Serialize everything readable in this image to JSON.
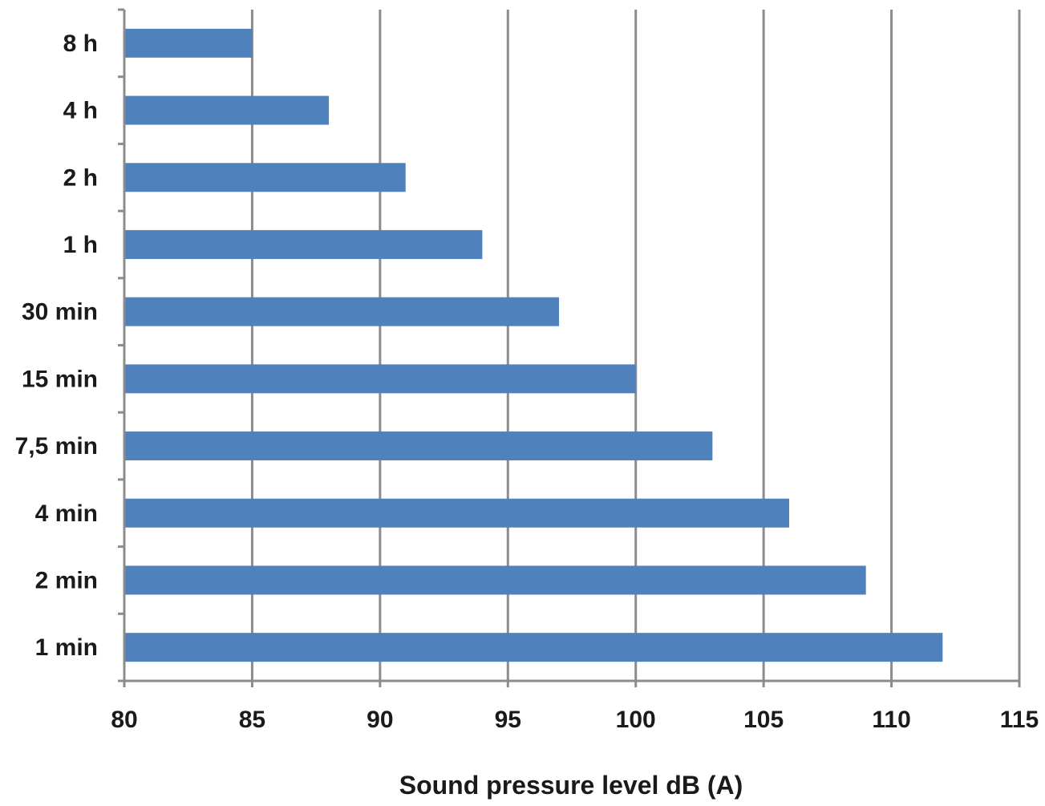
{
  "chart_data": {
    "type": "bar",
    "orientation": "horizontal",
    "title": "",
    "xlabel": "Sound pressure level dB (A)",
    "ylabel": "",
    "categories": [
      "1 min",
      "2 min",
      "4 min",
      "7,5 min",
      "15 min",
      "30 min",
      "1 h",
      "2 h",
      "4 h",
      "8 h"
    ],
    "values": [
      112,
      109,
      106,
      103,
      100,
      97,
      94,
      91,
      88,
      85
    ],
    "xlim": [
      80,
      115
    ],
    "xticks": [
      "80",
      "85",
      "90",
      "95",
      "100",
      "105",
      "110",
      "115"
    ],
    "grid": "vertical",
    "legend": "none",
    "colors": {
      "bar": "#4f81bd",
      "grid": "#8c8c8c",
      "axis": "#8c8c8c"
    }
  }
}
